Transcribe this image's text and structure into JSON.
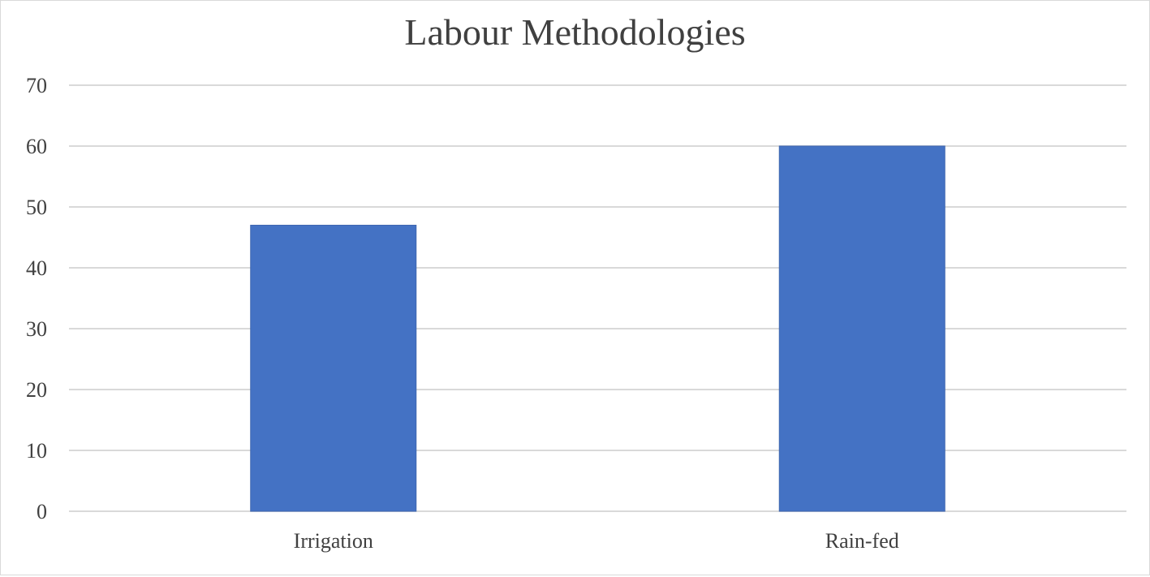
{
  "chart_data": {
    "type": "bar",
    "title": "Labour Methodologies",
    "categories": [
      "Irrigation",
      "Rain-fed"
    ],
    "values": [
      47,
      60
    ],
    "xlabel": "",
    "ylabel": "",
    "ylim": [
      0,
      70
    ],
    "yticks": [
      "0",
      "10",
      "20",
      "30",
      "40",
      "50",
      "60",
      "70"
    ],
    "grid": true,
    "legend": "none",
    "colors": {
      "bar": "#4472c4",
      "bar_edge": "#3f67b0",
      "grid": "#d9d9d9",
      "text": "#404040"
    }
  }
}
